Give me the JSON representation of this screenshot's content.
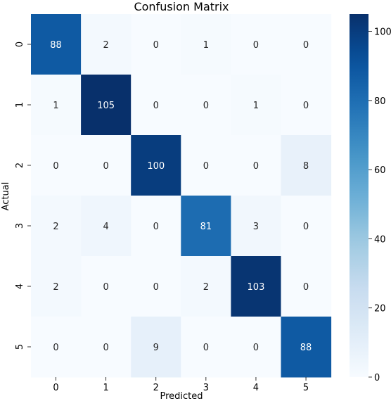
{
  "chart_data": {
    "type": "heatmap",
    "title": "Confusion Matrix",
    "xlabel": "Predicted",
    "ylabel": "Actual",
    "x_categories": [
      "0",
      "1",
      "2",
      "3",
      "4",
      "5"
    ],
    "y_categories": [
      "0",
      "1",
      "2",
      "3",
      "4",
      "5"
    ],
    "values": [
      [
        88,
        2,
        0,
        1,
        0,
        0
      ],
      [
        1,
        105,
        0,
        0,
        1,
        0
      ],
      [
        0,
        0,
        100,
        0,
        0,
        8
      ],
      [
        2,
        4,
        0,
        81,
        3,
        0
      ],
      [
        2,
        0,
        0,
        2,
        103,
        0
      ],
      [
        0,
        0,
        9,
        0,
        0,
        88
      ]
    ],
    "colormap": "Blues",
    "color_range": [
      0,
      105
    ],
    "colorbar_ticks": [
      0,
      20,
      40,
      60,
      80,
      100
    ],
    "colors": {
      "low": "#f7fbff",
      "high": "#08306b"
    }
  }
}
